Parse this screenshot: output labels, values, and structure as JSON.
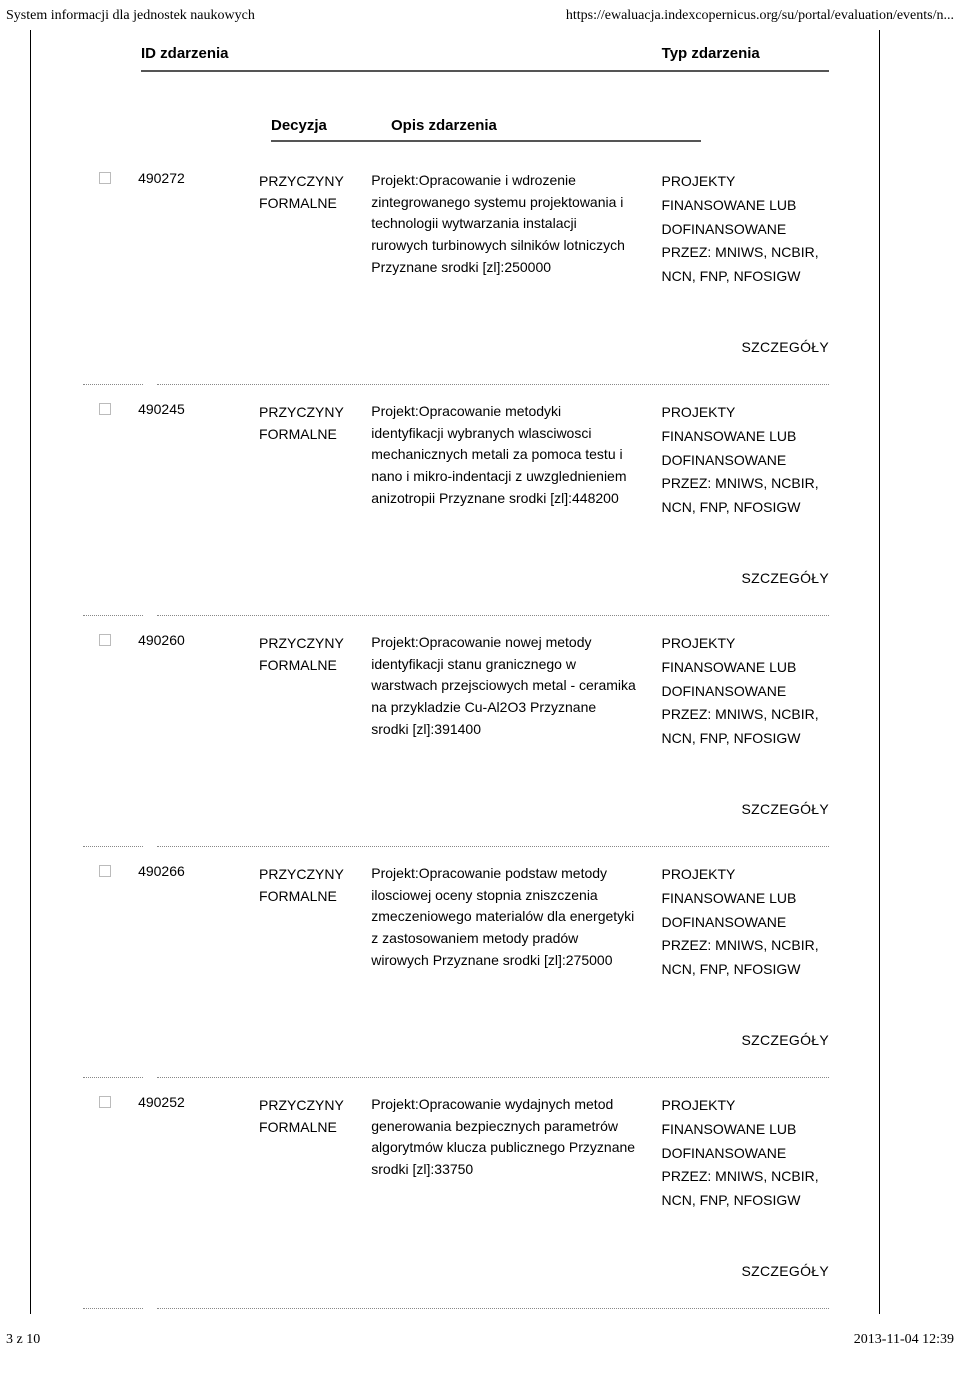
{
  "page_header": {
    "left": "System informacji dla jednostek naukowych",
    "right": "https://ewaluacja.indexcopernicus.org/su/portal/evaluation/events/n..."
  },
  "columns": {
    "id": "ID zdarzenia",
    "type": "Typ zdarzenia",
    "decision": "Decyzja",
    "description": "Opis zdarzenia"
  },
  "details_label": "SZCZEGÓŁY",
  "entries": [
    {
      "id": "490272",
      "decision": "PRZYCZYNY FORMALNE",
      "description": "Projekt:Opracowanie i wdrozenie zintegrowanego systemu projektowania i technologii wytwarzania instalacji rurowych turbinowych silników lotniczych Przyznane srodki [zl]:250000",
      "type": "PROJEKTY FINANSOWANE LUB DOFINANSOWANE PRZEZ: MNIWS, NCBIR, NCN, FNP, NFOSIGW"
    },
    {
      "id": "490245",
      "decision": "PRZYCZYNY FORMALNE",
      "description": "Projekt:Opracowanie metodyki identyfikacji wybranych wlasciwosci mechanicznych metali za pomoca testu i nano i mikro-indentacji z uwzglednieniem anizotropii Przyznane srodki [zl]:448200",
      "type": "PROJEKTY FINANSOWANE LUB DOFINANSOWANE PRZEZ: MNIWS, NCBIR, NCN, FNP, NFOSIGW"
    },
    {
      "id": "490260",
      "decision": "PRZYCZYNY FORMALNE",
      "description": "Projekt:Opracowanie nowej metody identyfikacji stanu granicznego w warstwach przejsciowych metal - ceramika na przykladzie Cu-Al2O3 Przyznane srodki [zl]:391400",
      "type": "PROJEKTY FINANSOWANE LUB DOFINANSOWANE PRZEZ: MNIWS, NCBIR, NCN, FNP, NFOSIGW"
    },
    {
      "id": "490266",
      "decision": "PRZYCZYNY FORMALNE",
      "description": "Projekt:Opracowanie podstaw metody ilosciowej oceny stopnia zniszczenia zmeczeniowego materialów dla energetyki z zastosowaniem metody pradów wirowych Przyznane srodki [zl]:275000",
      "type": "PROJEKTY FINANSOWANE LUB DOFINANSOWANE PRZEZ: MNIWS, NCBIR, NCN, FNP, NFOSIGW"
    },
    {
      "id": "490252",
      "decision": "PRZYCZYNY FORMALNE",
      "description": "Projekt:Opracowanie wydajnych metod generowania bezpiecznych parametrów algorytmów klucza publicznego Przyznane srodki [zl]:33750",
      "type": "PROJEKTY FINANSOWANE LUB DOFINANSOWANE PRZEZ: MNIWS, NCBIR, NCN, FNP, NFOSIGW"
    }
  ],
  "footer": {
    "left": "3 z 10",
    "right": "2013-11-04 12:39"
  }
}
